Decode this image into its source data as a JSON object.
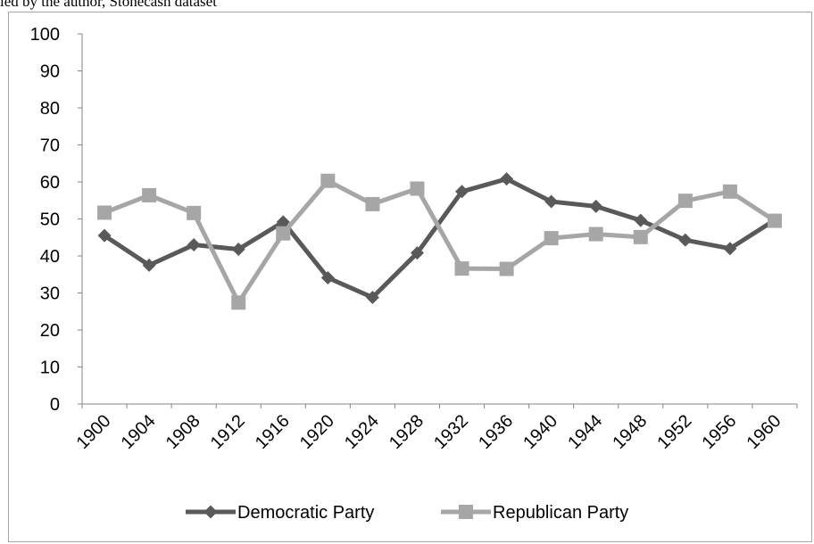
{
  "caption": "led by the author, Stonecash dataset",
  "chart_data": {
    "type": "line",
    "categories": [
      "1900",
      "1904",
      "1908",
      "1912",
      "1916",
      "1920",
      "1924",
      "1928",
      "1932",
      "1936",
      "1940",
      "1944",
      "1948",
      "1952",
      "1956",
      "1960"
    ],
    "series": [
      {
        "name": "Democratic Party",
        "color": "#595959",
        "marker": "diamond",
        "values": [
          45.5,
          37.5,
          43,
          41.8,
          49.2,
          34.1,
          28.8,
          40.8,
          57.4,
          60.8,
          54.7,
          53.4,
          49.6,
          44.3,
          42,
          49.7
        ]
      },
      {
        "name": "Republican Party",
        "color": "#a6a6a6",
        "marker": "square",
        "values": [
          51.7,
          56.4,
          51.6,
          27.4,
          46.1,
          60.3,
          54,
          58.2,
          36.6,
          36.5,
          44.8,
          45.9,
          45.1,
          54.9,
          57.4,
          49.5
        ]
      }
    ],
    "ylim": [
      0,
      100
    ],
    "yticks": [
      "0",
      "10",
      "20",
      "30",
      "40",
      "50",
      "60",
      "70",
      "80",
      "90",
      "100"
    ],
    "grid": false,
    "legend_position": "bottom"
  }
}
